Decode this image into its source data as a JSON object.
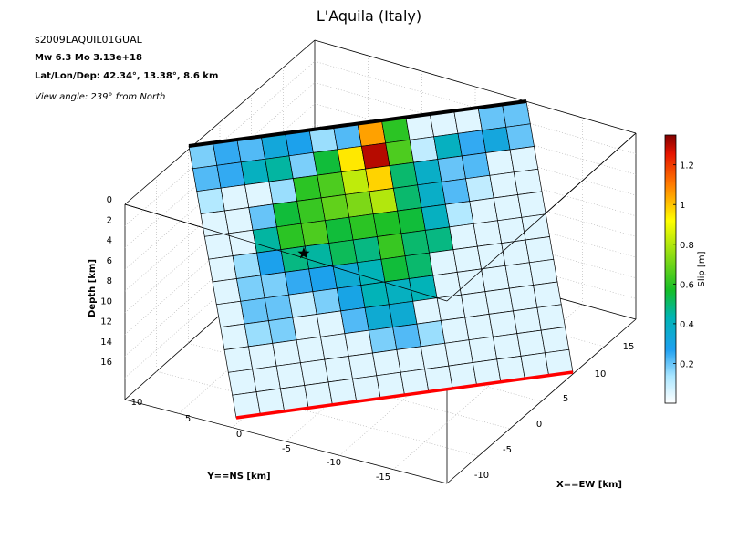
{
  "title": "L'Aquila (Italy)",
  "event_id": "s2009LAQUIL01GUAL",
  "mw_line": "Mw 6.3     Mo 3.13e+18",
  "loc_line": "Lat/Lon/Dep: 42.34°, 13.38°, 8.6 km",
  "view_line": "View angle: 239° from North",
  "colors": {
    "top_edge": "#000000",
    "bottom_edge": "#ff0000",
    "hypocenter": "#000000",
    "grid": "#b0b0b0"
  },
  "chart_data": {
    "type": "heatmap",
    "grid_on": true,
    "axes": {
      "z_label": "Depth [km]",
      "z_ticks": [
        "0",
        "2",
        "4",
        "6",
        "8",
        "10",
        "12",
        "14",
        "16"
      ],
      "y_label": "Y==NS [km]",
      "y_ticks": [
        "10",
        "5",
        "0",
        "-5",
        "-10",
        "-15"
      ],
      "x_label": "X==EW [km]",
      "x_ticks": [
        "15",
        "10",
        "5",
        "0",
        "-5",
        "-10"
      ]
    },
    "colorbar": {
      "label": "Slip [m]",
      "ticks": [
        "0.2",
        "0.4",
        "0.6",
        "0.8",
        "1",
        "1.2"
      ],
      "range": [
        0,
        1.35
      ]
    },
    "grid_rows": 12,
    "grid_cols": 14,
    "slip": [
      [
        0.18,
        0.25,
        0.22,
        0.33,
        0.28,
        0.15,
        0.22,
        1.05,
        0.6,
        0.05,
        0.05,
        0.05,
        0.2,
        0.2
      ],
      [
        0.22,
        0.25,
        0.4,
        0.45,
        0.18,
        0.55,
        0.95,
        1.3,
        0.65,
        0.1,
        0.4,
        0.25,
        0.32,
        0.2
      ],
      [
        0.12,
        0.05,
        0.05,
        0.15,
        0.6,
        0.65,
        0.82,
        0.98,
        0.5,
        0.38,
        0.2,
        0.22,
        0.05,
        0.05
      ],
      [
        0.05,
        0.05,
        0.2,
        0.55,
        0.62,
        0.68,
        0.72,
        0.8,
        0.5,
        0.38,
        0.22,
        0.1,
        0.05,
        0.05
      ],
      [
        0.05,
        0.05,
        0.45,
        0.6,
        0.65,
        0.55,
        0.6,
        0.58,
        0.55,
        0.4,
        0.12,
        0.05,
        0.05,
        0.05
      ],
      [
        0.05,
        0.15,
        0.28,
        0.48,
        0.45,
        0.52,
        0.48,
        0.62,
        0.5,
        0.48,
        0.05,
        0.05,
        0.05,
        0.05
      ],
      [
        0.05,
        0.18,
        0.18,
        0.25,
        0.28,
        0.35,
        0.42,
        0.55,
        0.5,
        0.05,
        0.05,
        0.05,
        0.05,
        0.05
      ],
      [
        0.05,
        0.2,
        0.2,
        0.1,
        0.18,
        0.3,
        0.42,
        0.4,
        0.42,
        0.05,
        0.05,
        0.05,
        0.05,
        0.05
      ],
      [
        0.05,
        0.15,
        0.18,
        0.05,
        0.05,
        0.22,
        0.35,
        0.35,
        0.05,
        0.05,
        0.05,
        0.05,
        0.05,
        0.05
      ],
      [
        0.05,
        0.05,
        0.05,
        0.05,
        0.05,
        0.05,
        0.18,
        0.22,
        0.15,
        0.05,
        0.05,
        0.05,
        0.05,
        0.05
      ],
      [
        0.05,
        0.05,
        0.05,
        0.05,
        0.05,
        0.05,
        0.05,
        0.05,
        0.05,
        0.05,
        0.05,
        0.05,
        0.05,
        0.05
      ],
      [
        0.05,
        0.05,
        0.05,
        0.05,
        0.05,
        0.05,
        0.05,
        0.05,
        0.05,
        0.05,
        0.05,
        0.05,
        0.05,
        0.05
      ]
    ],
    "hypocenter": {
      "row": 5.3,
      "col": 3.9
    }
  }
}
